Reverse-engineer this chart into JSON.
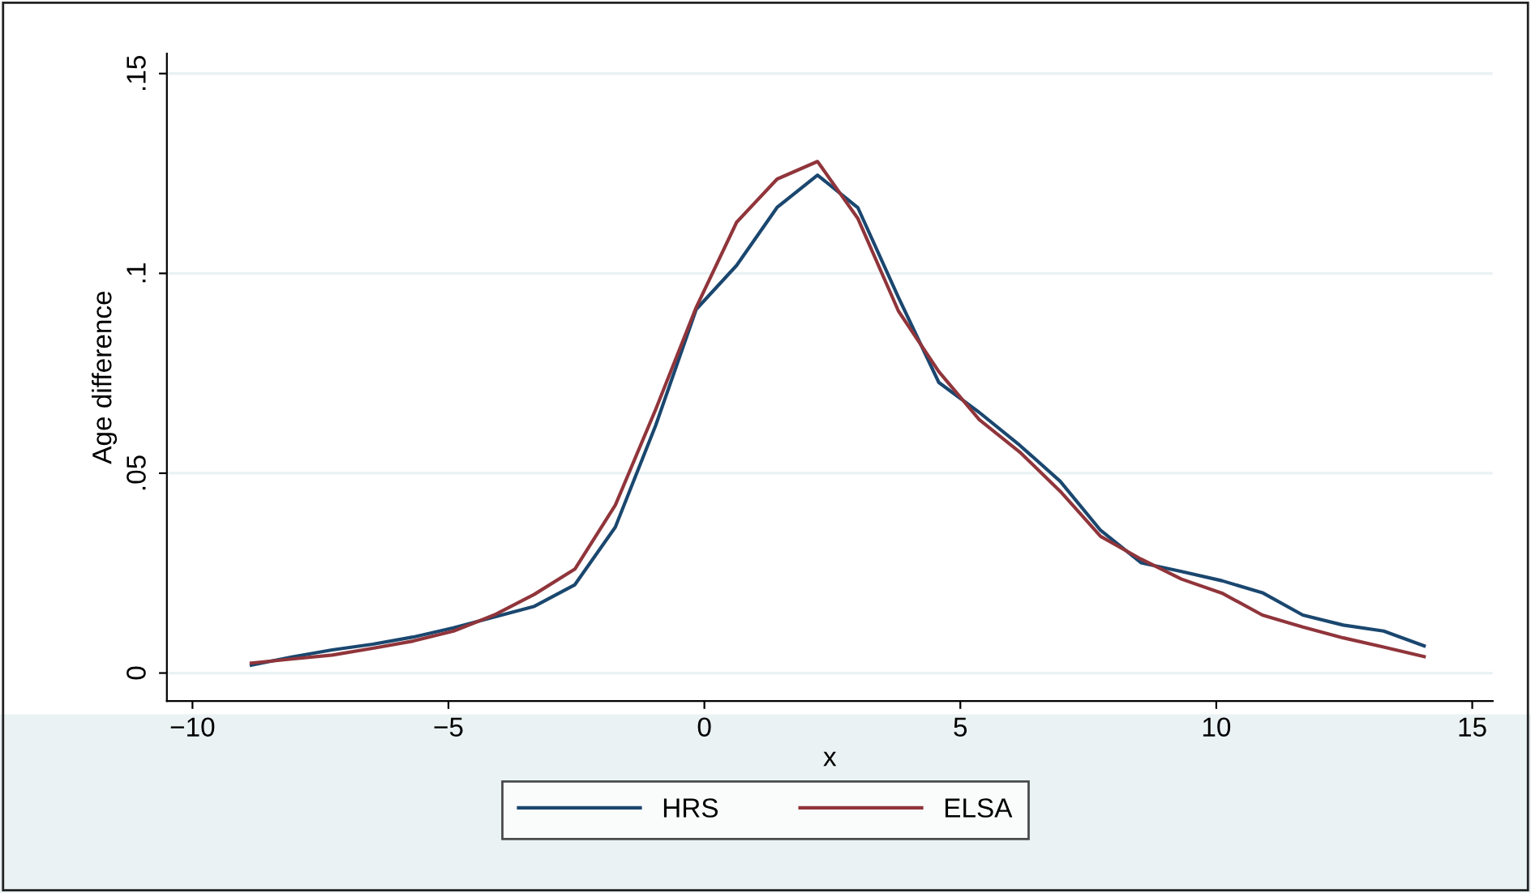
{
  "chart_data": {
    "type": "line",
    "xlabel": "x",
    "ylabel": "Age difference",
    "x": [
      -8.85,
      -8.06,
      -7.27,
      -6.48,
      -5.69,
      -4.9,
      -4.11,
      -3.32,
      -2.53,
      -1.74,
      -0.95,
      -0.16,
      0.63,
      1.42,
      2.21,
      3.0,
      3.79,
      4.58,
      5.37,
      6.16,
      6.95,
      7.74,
      8.53,
      9.32,
      10.11,
      10.9,
      11.69,
      12.48,
      13.27,
      14.06
    ],
    "series": [
      {
        "name": "HRS",
        "color": "#1a476f",
        "values": [
          0.002,
          0.004,
          0.0058,
          0.0072,
          0.009,
          0.0113,
          0.014,
          0.0167,
          0.0221,
          0.0365,
          0.062,
          0.091,
          0.102,
          0.1165,
          0.1246,
          0.1164,
          0.094,
          0.0727,
          0.0652,
          0.057,
          0.048,
          0.0357,
          0.0276,
          0.0254,
          0.0231,
          0.0201,
          0.0145,
          0.012,
          0.0105,
          0.0068
        ]
      },
      {
        "name": "ELSA",
        "color": "#90353b",
        "values": [
          0.0025,
          0.0035,
          0.0045,
          0.0062,
          0.008,
          0.0105,
          0.0145,
          0.0197,
          0.026,
          0.042,
          0.066,
          0.0915,
          0.1128,
          0.1236,
          0.128,
          0.1137,
          0.0906,
          0.0754,
          0.0634,
          0.0553,
          0.0455,
          0.0342,
          0.0285,
          0.0235,
          0.02,
          0.0145,
          0.0115,
          0.0088,
          0.0065,
          0.0041
        ]
      }
    ],
    "xlim": [
      -10.5,
      15.4
    ],
    "ylim": [
      -0.007,
      0.155
    ],
    "xticks": [
      {
        "value": -10,
        "label": "−10"
      },
      {
        "value": -5,
        "label": "−5"
      },
      0,
      5,
      10,
      15
    ],
    "yticks": [
      0,
      {
        "value": 0.05,
        "label": ".05"
      },
      {
        "value": 0.1,
        "label": ".1"
      },
      {
        "value": 0.15,
        "label": ".15"
      }
    ],
    "grid": "y",
    "legend": "bottom",
    "marker": "none",
    "line_style": "solid"
  }
}
